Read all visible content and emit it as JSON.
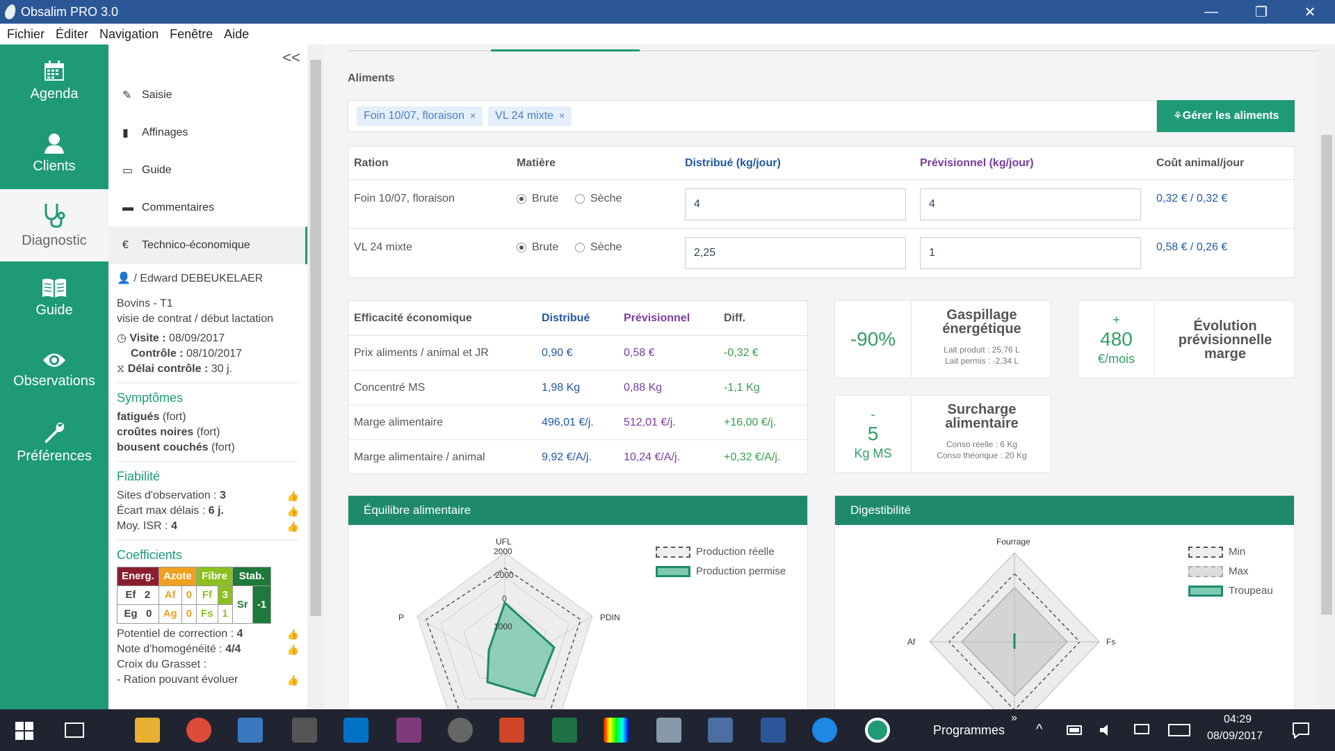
{
  "window": {
    "title": "Obsalim PRO 3.0",
    "min": "—",
    "max": "❐",
    "close": "✕"
  },
  "menu": [
    "Fichier",
    "Éditer",
    "Navigation",
    "Fenêtre",
    "Aide"
  ],
  "nav": [
    {
      "label": "Agenda",
      "icon": "calendar-icon"
    },
    {
      "label": "Clients",
      "icon": "user-icon"
    },
    {
      "label": "Diagnostic",
      "icon": "stethoscope-icon"
    },
    {
      "label": "Guide",
      "icon": "book-icon"
    },
    {
      "label": "Observations",
      "icon": "eye-icon"
    },
    {
      "label": "Préférences",
      "icon": "wrench-icon"
    }
  ],
  "sidebar": {
    "collapse": "<<",
    "items": [
      "Saisie",
      "Affinages",
      "Guide",
      "Commentaires",
      "Technico-économique"
    ],
    "client": "/ Edward DEBEUKELAER",
    "herd": "Bovins - T1",
    "visit_type": "visie de contrat / début lactation",
    "visite_label": "Visite :",
    "visite": "08/09/2017",
    "controle_label": "Contrôle :",
    "controle": "08/10/2017",
    "delai_label": "Délai contrôle :",
    "delai": "30 j.",
    "symptomes_title": "Symptômes",
    "symptomes": [
      {
        "name": "fatigués",
        "level": "(fort)"
      },
      {
        "name": "croûtes noires",
        "level": "(fort)"
      },
      {
        "name": "bousent couchés",
        "level": "(fort)"
      }
    ],
    "fiabilite_title": "Fiabilité",
    "fiabilite": [
      {
        "label": "Sites d'observation :",
        "value": "3"
      },
      {
        "label": "Écart max délais :",
        "value": "6 j."
      },
      {
        "label": "Moy. ISR :",
        "value": "4"
      }
    ],
    "coef_title": "Coefficients",
    "coef": {
      "h_energ": "Energ.",
      "h_azote": "Azote",
      "h_fibre": "Fibre",
      "h_stab": "Stab.",
      "ef": "Ef",
      "ef_v": "2",
      "af": "Af",
      "af_v": "0",
      "ff": "Ff",
      "ff_v": "3",
      "eg": "Eg",
      "eg_v": "0",
      "ag": "Ag",
      "ag_v": "0",
      "fs": "Fs",
      "fs_v": "1",
      "sr": "Sr",
      "sr_v": "-1"
    },
    "extra": [
      {
        "label": "Potentiel de correction :",
        "value": "4"
      },
      {
        "label": "Note d'homogénéité :",
        "value": "4/4"
      }
    ],
    "grasset": "Croix du Grasset :",
    "ration_evol": "- Ration pouvant évoluer"
  },
  "aliments": {
    "label": "Aliments",
    "tags": [
      "Foin 10/07, floraison",
      "VL 24 mixte"
    ],
    "button": "Gérer les aliments"
  },
  "ration": {
    "headers": [
      "Ration",
      "Matière",
      "Distribué (kg/jour)",
      "Prévisionnel (kg/jour)",
      "Coût animal/jour"
    ],
    "brute": "Brute",
    "seche": "Sèche",
    "rows": [
      {
        "name": "Foin 10/07, floraison",
        "distribue": "4",
        "previsionnel": "4",
        "cout": "0,32 € / 0,32 €"
      },
      {
        "name": "VL 24 mixte",
        "distribue": "2,25",
        "previsionnel": "1",
        "cout": "0,58 € / 0,26 €"
      }
    ]
  },
  "efficacite": {
    "headers": [
      "Efficacité économique",
      "Distribué",
      "Prévisionnel",
      "Diff."
    ],
    "rows": [
      {
        "label": "Prix aliments / animal et JR",
        "d": "0,90 €",
        "p": "0,58 €",
        "diff": "-0,32 €"
      },
      {
        "label": "Concentré MS",
        "d": "1,98 Kg",
        "p": "0,88 Kg",
        "diff": "-1,1 Kg"
      },
      {
        "label": "Marge alimentaire",
        "d": "496,01 €/j.",
        "p": "512,01 €/j.",
        "diff": "+16,00 €/j."
      },
      {
        "label": "Marge alimentaire / animal",
        "d": "9,92 €/A/j.",
        "p": "10,24 €/A/j.",
        "diff": "+0,32 €/A/j."
      }
    ]
  },
  "cards": {
    "gaspillage": {
      "value": "-90%",
      "title1": "Gaspillage",
      "title2": "énergétique",
      "sub1": "Lait produit : 25,76 L",
      "sub2": "Lait permis : -2,34 L"
    },
    "evolution": {
      "sign": "+",
      "value": "480",
      "unit": "€/mois",
      "title1": "Évolution",
      "title2": "prévisionnelle",
      "title3": "marge"
    },
    "surcharge": {
      "sign": "-",
      "value": "5",
      "unit": "Kg MS",
      "title1": "Surcharge",
      "title2": "alimentaire",
      "sub1": "Conso réelle : 6 Kg",
      "sub2": "Conso théorique : 20 Kg"
    }
  },
  "equilibre": {
    "title": "Équilibre alimentaire",
    "axes": {
      "ufl": "UFL",
      "pdin": "PDIN",
      "p": "P"
    },
    "ticks": {
      "t2000": "2000",
      "t0": "0",
      "t1000": "1000"
    },
    "legend": [
      "Production réelle",
      "Production permise"
    ]
  },
  "digest": {
    "title": "Digestibilité",
    "axes": {
      "fourrage": "Fourrage",
      "fs": "Fs",
      "af": "Af"
    },
    "legend": [
      "Min",
      "Max",
      "Troupeau"
    ]
  },
  "taskbar": {
    "programmes": "Programmes",
    "time": "04:29",
    "date": "08/09/2017",
    "chevron": "»"
  }
}
